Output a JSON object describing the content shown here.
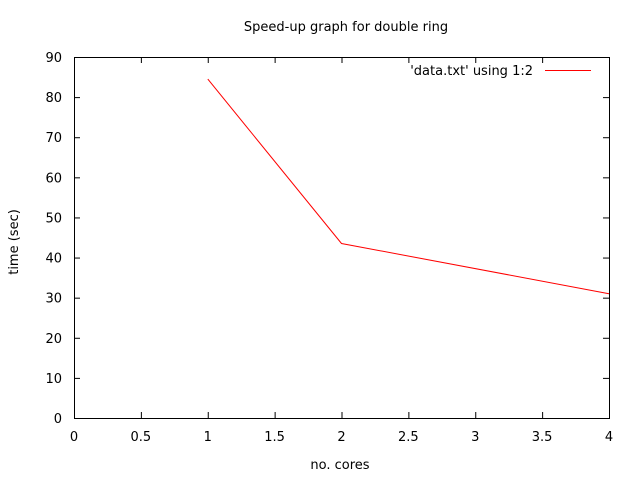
{
  "chart_data": {
    "type": "line",
    "title": "Speed-up graph for double ring",
    "xlabel": "no. cores",
    "ylabel": "time (sec)",
    "xlim": [
      0,
      4
    ],
    "ylim": [
      0,
      90
    ],
    "x_ticks": [
      "0",
      "0.5",
      "1",
      "1.5",
      "2",
      "2.5",
      "3",
      "3.5",
      "4"
    ],
    "x_tick_values": [
      0,
      0.5,
      1,
      1.5,
      2,
      2.5,
      3,
      3.5,
      4
    ],
    "y_ticks": [
      "0",
      "10",
      "20",
      "30",
      "40",
      "50",
      "60",
      "70",
      "80",
      "90"
    ],
    "y_tick_values": [
      0,
      10,
      20,
      30,
      40,
      50,
      60,
      70,
      80,
      90
    ],
    "grid": false,
    "legend_position": "top-right",
    "series": [
      {
        "name": "'data.txt' using 1:2",
        "color": "#ff0000",
        "x": [
          1,
          2,
          4
        ],
        "y": [
          84.5,
          43.5,
          31
        ]
      }
    ]
  }
}
